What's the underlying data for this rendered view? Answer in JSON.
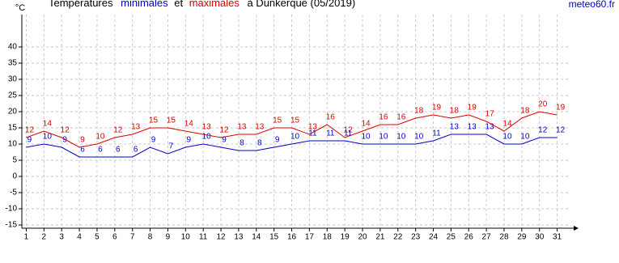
{
  "chart_data": {
    "type": "line",
    "title_prefix": "Températures",
    "title_joiner": "et",
    "title_suffix": "à Dunkerque (05/2019)",
    "y_unit": "°C",
    "source": "meteo60.fr",
    "x": [
      1,
      2,
      3,
      4,
      5,
      6,
      7,
      8,
      9,
      10,
      11,
      12,
      13,
      14,
      15,
      16,
      17,
      18,
      19,
      20,
      21,
      22,
      23,
      24,
      25,
      26,
      27,
      28,
      29,
      30,
      31
    ],
    "xlim": [
      0.75,
      31.75
    ],
    "xticks": [
      1,
      2,
      3,
      4,
      5,
      6,
      7,
      8,
      9,
      10,
      11,
      12,
      13,
      14,
      15,
      16,
      17,
      18,
      19,
      20,
      21,
      22,
      23,
      24,
      25,
      26,
      27,
      28,
      29,
      30,
      31
    ],
    "ylim": [
      -16,
      50
    ],
    "yticks": [
      -15,
      -10,
      -5,
      0,
      5,
      10,
      15,
      20,
      25,
      30,
      35,
      40
    ],
    "grid": true,
    "series": [
      {
        "name": "minimales",
        "color": "#0000cc",
        "values": [
          9,
          10,
          9,
          6,
          6,
          6,
          6,
          9,
          7,
          9,
          10,
          9,
          8,
          8,
          9,
          10,
          11,
          11,
          11,
          10,
          10,
          10,
          10,
          11,
          13,
          13,
          13,
          10,
          10,
          12,
          12
        ]
      },
      {
        "name": "maximales",
        "color": "#dd0000",
        "values": [
          12,
          14,
          12,
          9,
          10,
          12,
          13,
          15,
          15,
          14,
          13,
          12,
          13,
          13,
          15,
          15,
          13,
          16,
          12,
          14,
          16,
          16,
          18,
          19,
          18,
          19,
          17,
          14,
          18,
          20,
          19
        ]
      }
    ]
  }
}
